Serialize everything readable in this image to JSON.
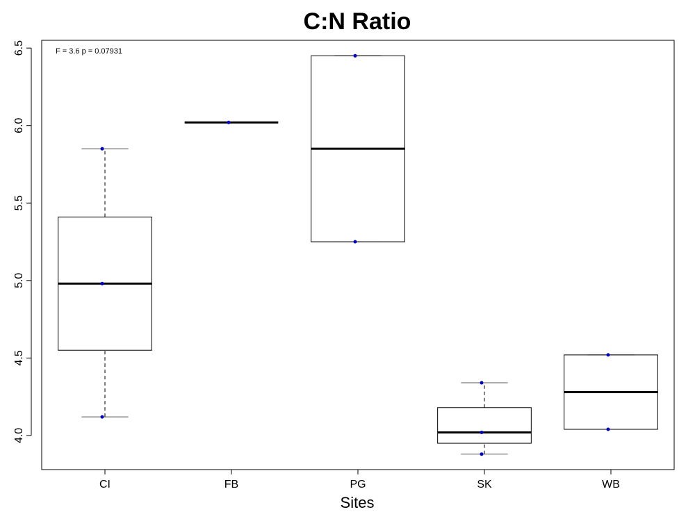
{
  "chart_data": {
    "type": "boxplot",
    "title": "C:N Ratio",
    "xlabel": "Sites",
    "ylabel": "",
    "ylim": [
      3.78,
      6.55
    ],
    "y_ticks": [
      "4.0",
      "4.5",
      "5.0",
      "5.5",
      "6.0",
      "6.5"
    ],
    "annotation": "F = 3.6 p = 0.07931",
    "grid": false,
    "colors": {
      "box_stroke": "#000000",
      "whisker": "#555555",
      "median": "#000000",
      "point": "#0000cc"
    },
    "categories": [
      "CI",
      "FB",
      "PG",
      "SK",
      "WB"
    ],
    "boxes": [
      {
        "site": "CI",
        "whisker_low": 4.12,
        "q1": 4.55,
        "median": 4.98,
        "q3": 5.41,
        "whisker_high": 5.85,
        "points": [
          5.85,
          4.98,
          4.12
        ]
      },
      {
        "site": "FB",
        "whisker_low": 6.02,
        "q1": 6.02,
        "median": 6.02,
        "q3": 6.02,
        "whisker_high": 6.02,
        "points": [
          6.02
        ]
      },
      {
        "site": "PG",
        "whisker_low": 5.25,
        "q1": 5.25,
        "median": 5.85,
        "q3": 6.45,
        "whisker_high": 6.45,
        "points": [
          6.45,
          5.25
        ]
      },
      {
        "site": "SK",
        "whisker_low": 3.88,
        "q1": 3.95,
        "median": 4.02,
        "q3": 4.18,
        "whisker_high": 4.34,
        "points": [
          4.34,
          4.02,
          3.88
        ]
      },
      {
        "site": "WB",
        "whisker_low": 4.04,
        "q1": 4.04,
        "median": 4.28,
        "q3": 4.52,
        "whisker_high": 4.52,
        "points": [
          4.52,
          4.04
        ]
      }
    ]
  }
}
